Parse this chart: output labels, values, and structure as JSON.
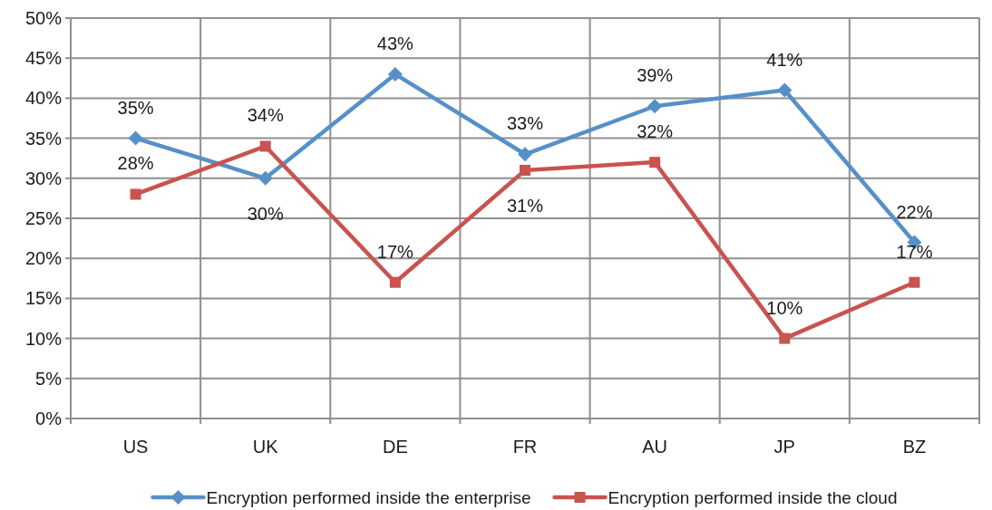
{
  "chart_data": {
    "type": "line",
    "categories": [
      "US",
      "UK",
      "DE",
      "FR",
      "AU",
      "JP",
      "BZ"
    ],
    "series": [
      {
        "name": "Encryption performed inside the enterprise",
        "color": "#5690c9",
        "marker": "diamond",
        "values": [
          35,
          30,
          43,
          33,
          39,
          41,
          22
        ],
        "value_labels": [
          "35%",
          "30%",
          "43%",
          "33%",
          "39%",
          "41%",
          "22%"
        ]
      },
      {
        "name": "Encryption performed inside the cloud",
        "color": "#c9534f",
        "marker": "square",
        "values": [
          28,
          34,
          17,
          31,
          32,
          10,
          17
        ],
        "value_labels": [
          "28%",
          "34%",
          "17%",
          "31%",
          "32%",
          "10%",
          "17%"
        ]
      }
    ],
    "ylim": [
      0,
      50
    ],
    "yticks": [
      {
        "value": 0,
        "label": "0%"
      },
      {
        "value": 5,
        "label": "5%"
      },
      {
        "value": 10,
        "label": "10%"
      },
      {
        "value": 15,
        "label": "15%"
      },
      {
        "value": 20,
        "label": "20%"
      },
      {
        "value": 25,
        "label": "25%"
      },
      {
        "value": 30,
        "label": "30%"
      },
      {
        "value": 35,
        "label": "35%"
      },
      {
        "value": 40,
        "label": "40%"
      },
      {
        "value": 45,
        "label": "45%"
      },
      {
        "value": 50,
        "label": "50%"
      }
    ],
    "grid": true,
    "legend": "bottom",
    "line_style": "solid"
  }
}
